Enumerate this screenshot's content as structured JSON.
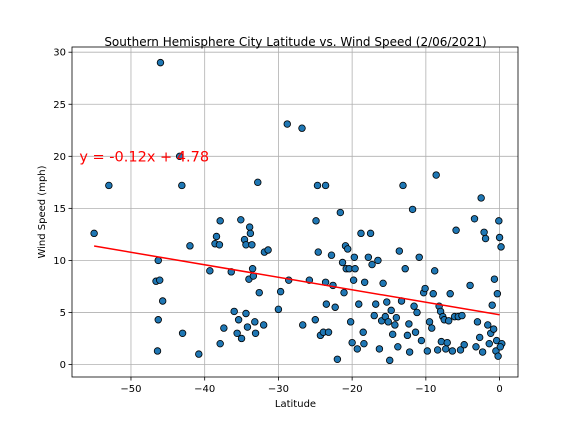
{
  "chart_data": {
    "type": "scatter",
    "title": "Southern Hemisphere City Latitude vs. Wind Speed (2/06/2021)",
    "xlabel": "Latitude",
    "ylabel": "Wind Speed (mph)",
    "xlim": [
      -58,
      2.5
    ],
    "ylim": [
      -1.2,
      30.5
    ],
    "xticks": [
      -50,
      -40,
      -30,
      -20,
      -10,
      0
    ],
    "xtick_labels": [
      "−50",
      "−40",
      "−30",
      "−20",
      "−10",
      "0"
    ],
    "yticks": [
      0,
      5,
      10,
      15,
      20,
      25,
      30
    ],
    "ytick_labels": [
      "0",
      "5",
      "10",
      "15",
      "20",
      "25",
      "30"
    ],
    "grid": true,
    "point_color": "#1f77b4",
    "point_edge_color": "#000000",
    "regression": {
      "slope": -0.12,
      "intercept": 4.78,
      "x_range": [
        -55,
        0
      ],
      "color": "#ff0000",
      "equation_label": "y = -0.12x + 4.78",
      "label_position": {
        "x": -57,
        "y": 20
      }
    },
    "points": [
      [
        -55,
        12.6
      ],
      [
        -53,
        17.2
      ],
      [
        -46,
        29
      ],
      [
        -46.3,
        10
      ],
      [
        -46.6,
        8
      ],
      [
        -46.1,
        8.1
      ],
      [
        -46.3,
        4.3
      ],
      [
        -46.4,
        1.3
      ],
      [
        -45.7,
        6.1
      ],
      [
        -43.4,
        20
      ],
      [
        -43.1,
        17.2
      ],
      [
        -43.0,
        3.0
      ],
      [
        -42.0,
        11.4
      ],
      [
        -40.8,
        1.0
      ],
      [
        -39.3,
        9.0
      ],
      [
        -38.6,
        11.6
      ],
      [
        -38.4,
        12.3
      ],
      [
        -38.0,
        11.5
      ],
      [
        -37.9,
        13.8
      ],
      [
        -37.9,
        2.0
      ],
      [
        -37.4,
        3.5
      ],
      [
        -36.4,
        8.9
      ],
      [
        -36.0,
        5.1
      ],
      [
        -35.6,
        3.0
      ],
      [
        -35.4,
        4.3
      ],
      [
        -35.1,
        13.9
      ],
      [
        -35.0,
        2.5
      ],
      [
        -34.6,
        12.0
      ],
      [
        -34.4,
        11.5
      ],
      [
        -34.4,
        4.9
      ],
      [
        -34.2,
        3.6
      ],
      [
        -34.0,
        8.2
      ],
      [
        -33.9,
        13.2
      ],
      [
        -33.8,
        12.6
      ],
      [
        -33.6,
        11.5
      ],
      [
        -33.5,
        9.2
      ],
      [
        -33.4,
        8.5
      ],
      [
        -33.2,
        4.1
      ],
      [
        -33.1,
        3.0
      ],
      [
        -32.8,
        17.5
      ],
      [
        -32.6,
        6.9
      ],
      [
        -32.0,
        3.8
      ],
      [
        -31.9,
        10.8
      ],
      [
        -31.4,
        11.0
      ],
      [
        -30.0,
        5.3
      ],
      [
        -29.7,
        7.0
      ],
      [
        -28.8,
        23.1
      ],
      [
        -28.6,
        8.1
      ],
      [
        -26.8,
        22.7
      ],
      [
        -26.7,
        3.8
      ],
      [
        -25.8,
        8.1
      ],
      [
        -25.0,
        4.3
      ],
      [
        -24.9,
        13.8
      ],
      [
        -24.7,
        17.2
      ],
      [
        -24.6,
        10.8
      ],
      [
        -24.3,
        2.8
      ],
      [
        -23.9,
        3.1
      ],
      [
        -23.6,
        17.2
      ],
      [
        -23.6,
        7.9
      ],
      [
        -23.5,
        5.8
      ],
      [
        -23.2,
        3.1
      ],
      [
        -22.8,
        10.5
      ],
      [
        -22.6,
        7.6
      ],
      [
        -22.3,
        5.5
      ],
      [
        -22.0,
        0.5
      ],
      [
        -21.6,
        14.6
      ],
      [
        -21.3,
        9.8
      ],
      [
        -21.1,
        6.9
      ],
      [
        -20.9,
        11.4
      ],
      [
        -20.8,
        9.2
      ],
      [
        -20.6,
        11.1
      ],
      [
        -20.4,
        9.2
      ],
      [
        -20.2,
        4.1
      ],
      [
        -20.0,
        2.1
      ],
      [
        -19.8,
        8.1
      ],
      [
        -19.7,
        10.3
      ],
      [
        -19.6,
        9.2
      ],
      [
        -19.3,
        1.5
      ],
      [
        -19.1,
        5.8
      ],
      [
        -18.8,
        12.6
      ],
      [
        -18.5,
        3.1
      ],
      [
        -18.4,
        2.0
      ],
      [
        -18.3,
        7.9
      ],
      [
        -17.8,
        10.3
      ],
      [
        -17.5,
        12.6
      ],
      [
        -17.3,
        9.6
      ],
      [
        -17.0,
        4.7
      ],
      [
        -16.8,
        5.8
      ],
      [
        -16.5,
        10.0
      ],
      [
        -16.3,
        1.5
      ],
      [
        -16.0,
        4.2
      ],
      [
        -15.8,
        7.8
      ],
      [
        -15.5,
        4.6
      ],
      [
        -15.3,
        6.0
      ],
      [
        -15.1,
        4.1
      ],
      [
        -14.9,
        0.4
      ],
      [
        -14.7,
        5.2
      ],
      [
        -14.5,
        2.9
      ],
      [
        -14.2,
        3.8
      ],
      [
        -14.0,
        4.5
      ],
      [
        -13.8,
        1.7
      ],
      [
        -13.6,
        10.9
      ],
      [
        -13.3,
        6.1
      ],
      [
        -13.1,
        17.2
      ],
      [
        -12.8,
        9.2
      ],
      [
        -12.5,
        2.8
      ],
      [
        -12.3,
        3.9
      ],
      [
        -12.2,
        1.2
      ],
      [
        -11.8,
        14.9
      ],
      [
        -11.6,
        5.6
      ],
      [
        -11.4,
        3.1
      ],
      [
        -11.2,
        5.0
      ],
      [
        -10.9,
        10.3
      ],
      [
        -10.6,
        2.3
      ],
      [
        -10.3,
        6.9
      ],
      [
        -10.1,
        7.3
      ],
      [
        -9.8,
        1.3
      ],
      [
        -9.5,
        4.1
      ],
      [
        -9.2,
        3.5
      ],
      [
        -9.0,
        6.8
      ],
      [
        -8.8,
        9.0
      ],
      [
        -8.6,
        18.2
      ],
      [
        -8.4,
        1.4
      ],
      [
        -8.2,
        5.6
      ],
      [
        -8.0,
        5.1
      ],
      [
        -7.9,
        2.2
      ],
      [
        -7.7,
        4.6
      ],
      [
        -7.5,
        4.3
      ],
      [
        -7.3,
        1.5
      ],
      [
        -7.1,
        2.1
      ],
      [
        -6.9,
        4.2
      ],
      [
        -6.7,
        6.8
      ],
      [
        -6.4,
        1.3
      ],
      [
        -6.1,
        4.6
      ],
      [
        -5.9,
        12.9
      ],
      [
        -5.6,
        4.6
      ],
      [
        -5.3,
        1.4
      ],
      [
        -5.1,
        4.7
      ],
      [
        -4.8,
        1.9
      ],
      [
        -4.0,
        7.6
      ],
      [
        -3.4,
        14.0
      ],
      [
        -3.2,
        1.7
      ],
      [
        -3.0,
        4.1
      ],
      [
        -2.7,
        2.6
      ],
      [
        -2.5,
        16.0
      ],
      [
        -2.3,
        1.2
      ],
      [
        -2.1,
        12.7
      ],
      [
        -1.9,
        12.1
      ],
      [
        -1.6,
        3.8
      ],
      [
        -1.4,
        2.0
      ],
      [
        -1.2,
        3.0
      ],
      [
        -1.0,
        5.7
      ],
      [
        -0.8,
        3.4
      ],
      [
        -0.7,
        8.2
      ],
      [
        -0.5,
        1.3
      ],
      [
        -0.4,
        2.3
      ],
      [
        -0.3,
        6.8
      ],
      [
        -0.2,
        0.8
      ],
      [
        -0.1,
        13.8
      ],
      [
        0.0,
        12.2
      ],
      [
        0.2,
        11.3
      ],
      [
        0.3,
        2.0
      ],
      [
        0.1,
        1.7
      ]
    ]
  }
}
